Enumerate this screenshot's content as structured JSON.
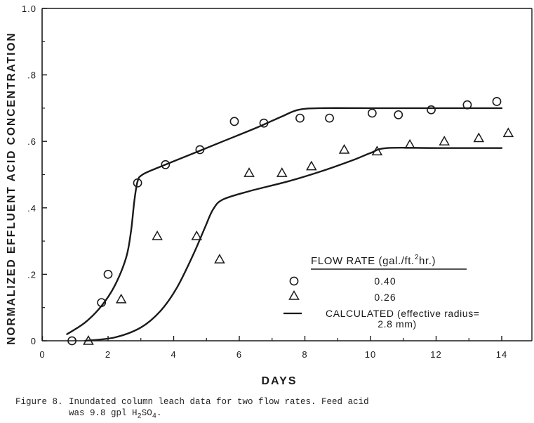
{
  "chart_data": {
    "type": "scatter",
    "title": "",
    "xlabel": "DAYS",
    "ylabel": "NORMALIZED EFFLUENT ACID CONCENTRATION",
    "xlim": [
      0,
      15
    ],
    "ylim": [
      0,
      1.0
    ],
    "x_ticks": [
      0,
      2,
      4,
      6,
      8,
      10,
      12,
      14
    ],
    "x_tick_labels": [
      "0",
      "2",
      "4",
      "6",
      "8",
      "10",
      "12",
      "14"
    ],
    "y_ticks": [
      0,
      0.2,
      0.4,
      0.6,
      0.8,
      1.0
    ],
    "y_tick_labels": [
      "0",
      ".2",
      ".4",
      ".6",
      ".8",
      "1.0"
    ],
    "series": [
      {
        "name": "0.40",
        "marker": "circle",
        "points": [
          [
            0.9,
            0.0
          ],
          [
            1.8,
            0.115
          ],
          [
            2.0,
            0.2
          ],
          [
            2.9,
            0.475
          ],
          [
            3.75,
            0.53
          ],
          [
            4.8,
            0.575
          ],
          [
            5.85,
            0.66
          ],
          [
            6.75,
            0.655
          ],
          [
            7.85,
            0.67
          ],
          [
            8.75,
            0.67
          ],
          [
            10.05,
            0.685
          ],
          [
            10.85,
            0.68
          ],
          [
            11.85,
            0.695
          ],
          [
            12.95,
            0.71
          ],
          [
            13.85,
            0.72
          ]
        ]
      },
      {
        "name": "0.26",
        "marker": "triangle",
        "points": [
          [
            1.4,
            0.0
          ],
          [
            2.4,
            0.125
          ],
          [
            3.5,
            0.315
          ],
          [
            4.7,
            0.315
          ],
          [
            5.4,
            0.245
          ],
          [
            6.3,
            0.505
          ],
          [
            7.3,
            0.505
          ],
          [
            8.2,
            0.525
          ],
          [
            9.2,
            0.575
          ],
          [
            10.2,
            0.57
          ],
          [
            11.2,
            0.59
          ],
          [
            12.25,
            0.6
          ],
          [
            13.3,
            0.61
          ],
          [
            14.2,
            0.625
          ]
        ]
      },
      {
        "name": "calculated 0.40",
        "style": "line",
        "points": [
          [
            0.75,
            0.02
          ],
          [
            1.3,
            0.055
          ],
          [
            1.8,
            0.105
          ],
          [
            2.2,
            0.165
          ],
          [
            2.55,
            0.25
          ],
          [
            2.7,
            0.33
          ],
          [
            2.8,
            0.42
          ],
          [
            2.9,
            0.48
          ],
          [
            3.05,
            0.5
          ],
          [
            3.5,
            0.52
          ],
          [
            4.5,
            0.56
          ],
          [
            5.5,
            0.6
          ],
          [
            6.5,
            0.64
          ],
          [
            7.3,
            0.675
          ],
          [
            7.8,
            0.695
          ],
          [
            8.5,
            0.7
          ],
          [
            10,
            0.7
          ],
          [
            12,
            0.7
          ],
          [
            14,
            0.7
          ]
        ]
      },
      {
        "name": "calculated 0.26",
        "style": "line",
        "points": [
          [
            1.3,
            0.0
          ],
          [
            2.2,
            0.01
          ],
          [
            3.0,
            0.04
          ],
          [
            3.6,
            0.09
          ],
          [
            4.1,
            0.16
          ],
          [
            4.6,
            0.26
          ],
          [
            4.95,
            0.34
          ],
          [
            5.2,
            0.395
          ],
          [
            5.5,
            0.425
          ],
          [
            6.3,
            0.45
          ],
          [
            7.5,
            0.48
          ],
          [
            8.5,
            0.51
          ],
          [
            9.5,
            0.545
          ],
          [
            10.0,
            0.565
          ],
          [
            10.5,
            0.58
          ],
          [
            12,
            0.58
          ],
          [
            14,
            0.58
          ]
        ]
      }
    ],
    "legend": {
      "placement": "bottom-right",
      "title": "FLOW RATE (gal./ft.",
      "title_sup": "2",
      "title_tail": "hr.)",
      "entries": [
        {
          "marker": "circle",
          "label": "0.40"
        },
        {
          "marker": "triangle",
          "label": "0.26"
        },
        {
          "marker": "line",
          "label": "CALCULATED (effective radius=",
          "label2": "2.8 mm)"
        }
      ]
    }
  },
  "caption": {
    "figure_number": "Figure 8.",
    "line1": "Inundated column leach data for two flow rates.  Feed acid",
    "line2_prefix": "was 9.8 gpl H",
    "line2_sub1": "2",
    "line2_mid": "SO",
    "line2_sub2": "4",
    "line2_suffix": "."
  }
}
